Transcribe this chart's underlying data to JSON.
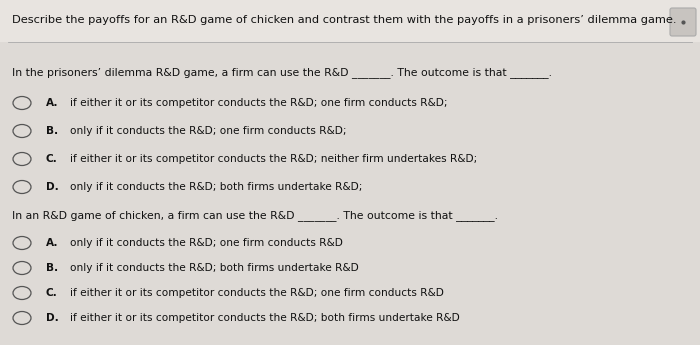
{
  "bg_color": "#d6d0cc",
  "header_bg": "#e8e4e0",
  "content_bg": "#dedad6",
  "header_text": "Describe the payoffs for an R&D game of chicken and contrast them with the payoffs in a prisoners’ dilemma game.",
  "section1_intro": "In the prisoners’ dilemma R&D game, a firm can use the R&D _______. The outcome is that _______.",
  "section1_options": [
    "if either it or its competitor conducts the R&D; one firm conducts R&D;",
    "only if it conducts the R&D; one firm conducts R&D;",
    "if either it or its competitor conducts the R&D; neither firm undertakes R&D;",
    "only if it conducts the R&D; both firms undertake R&D;"
  ],
  "section1_labels": [
    "A.",
    "B.",
    "C.",
    "D."
  ],
  "section2_intro": "In an R&D game of chicken, a firm can use the R&D _______. The outcome is that _______.",
  "section2_options": [
    "only if it conducts the R&D; one firm conducts R&D",
    "only if it conducts the R&D; both firms undertake R&D",
    "if either it or its competitor conducts the R&D; one firm conducts R&D",
    "if either it or its competitor conducts the R&D; both firms undertake R&D"
  ],
  "section2_labels": [
    "A.",
    "B.",
    "C.",
    "D."
  ],
  "text_color": "#111111",
  "header_font_size": 8.2,
  "intro_font_size": 7.8,
  "option_font_size": 7.6
}
